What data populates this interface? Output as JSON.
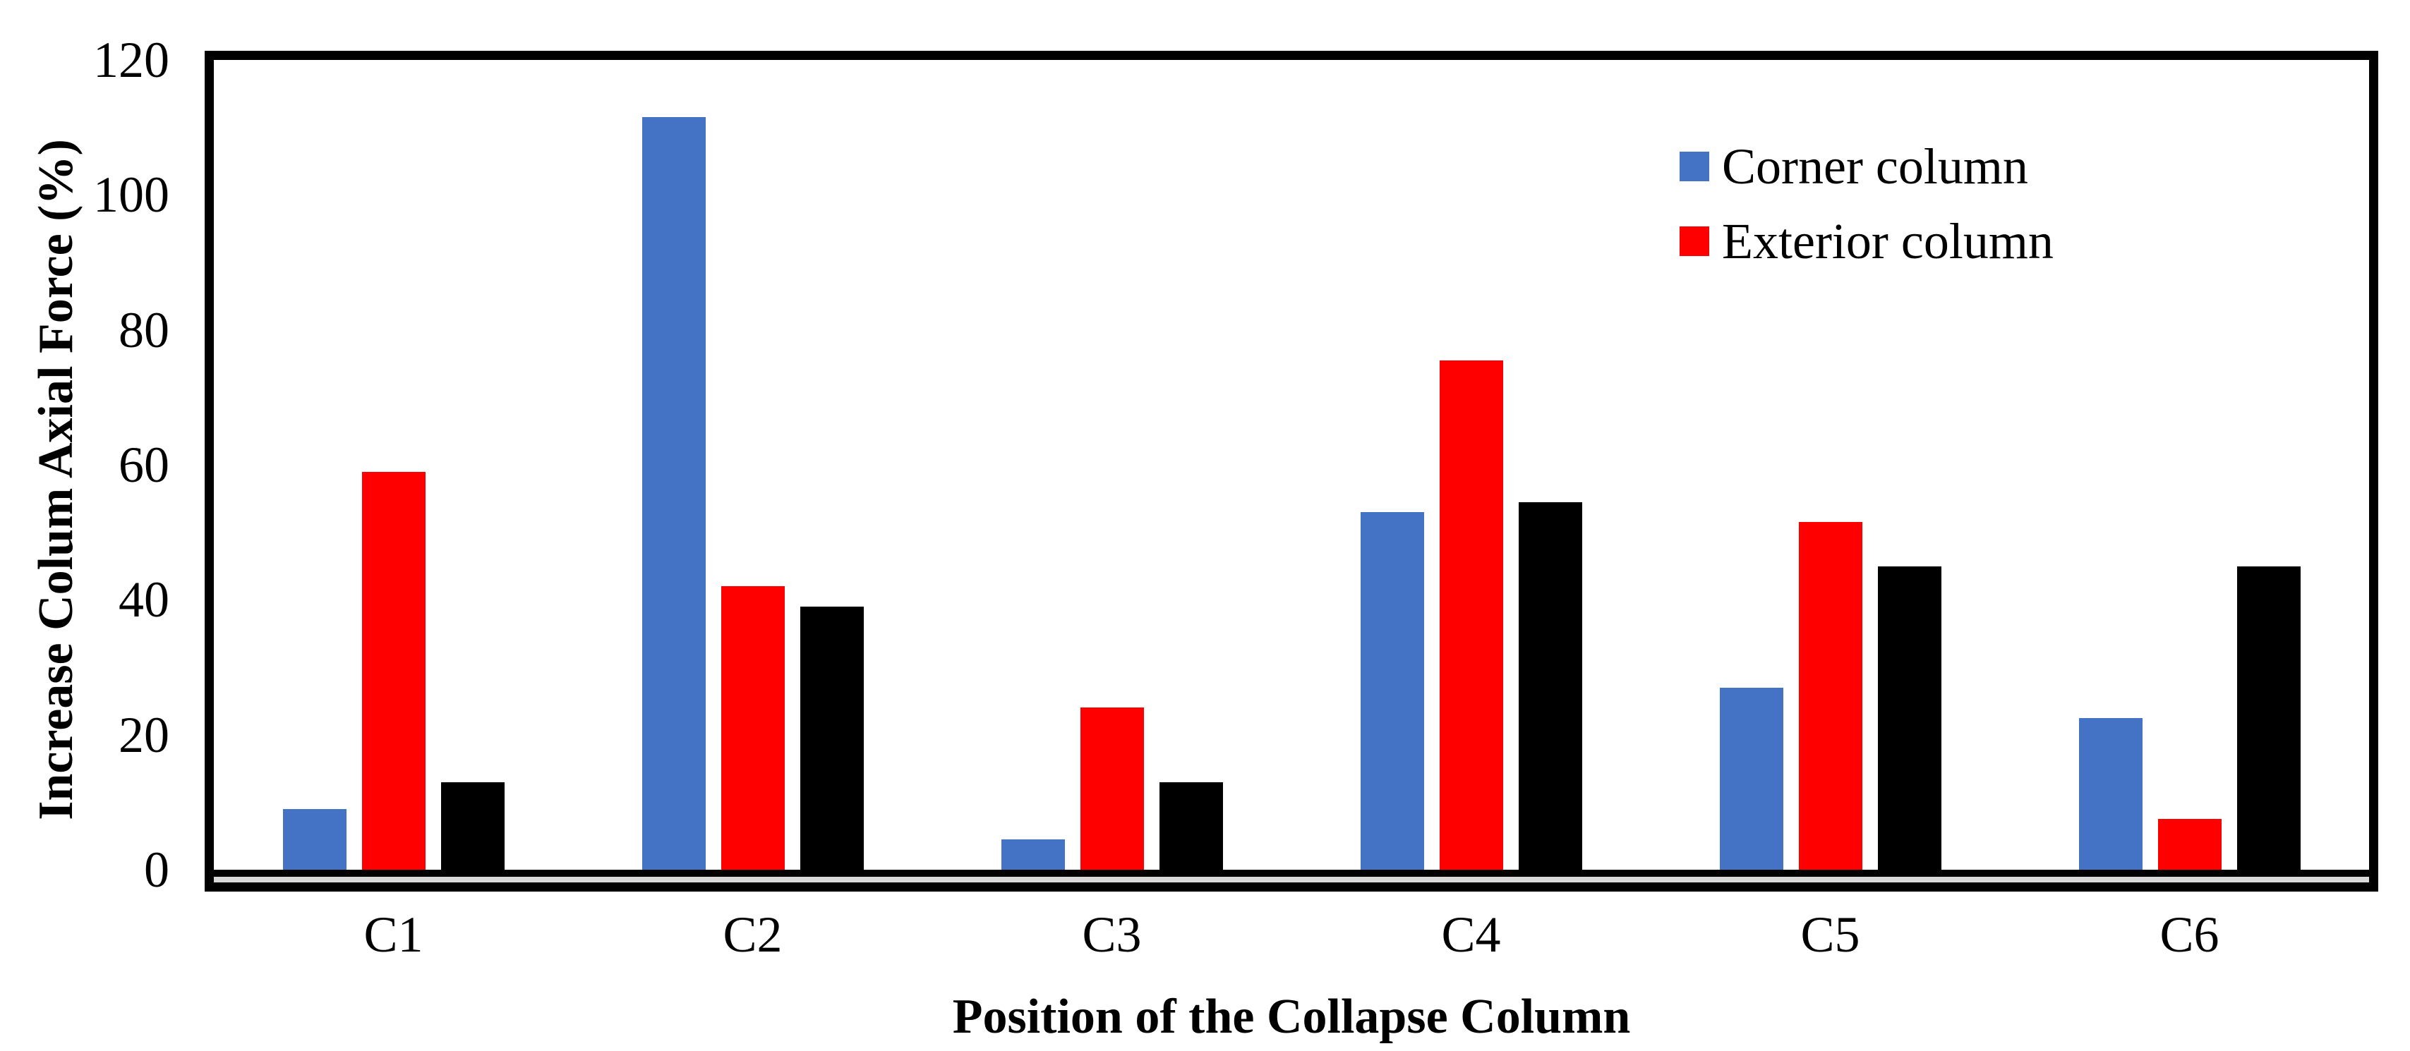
{
  "chart_data": {
    "type": "bar",
    "title": "",
    "xlabel": "Position of the Collapse Column",
    "ylabel": "Increase Colum Axial Force (%)",
    "categories": [
      "C1",
      "C2",
      "C3",
      "C4",
      "C5",
      "C6"
    ],
    "series": [
      {
        "name": "Corner column",
        "color": "#4472C4",
        "in_legend": true,
        "values": [
          9,
          111.5,
          4.5,
          53,
          27,
          22.5
        ]
      },
      {
        "name": "Exterior column",
        "color": "#FF0000",
        "in_legend": true,
        "values": [
          59,
          42,
          24,
          75.5,
          51.5,
          7.5
        ]
      },
      {
        "name": "",
        "color": "#000000",
        "in_legend": false,
        "values": [
          13,
          39,
          13,
          54.5,
          45,
          45
        ]
      }
    ],
    "ylim": [
      0,
      120
    ],
    "yticks": [
      0,
      20,
      40,
      60,
      80,
      100,
      120
    ],
    "grid": false,
    "legend_position": "top-right",
    "axis_color": "#000000",
    "axis_shadow_color": "#d9d9d9",
    "background_color": "#ffffff"
  }
}
